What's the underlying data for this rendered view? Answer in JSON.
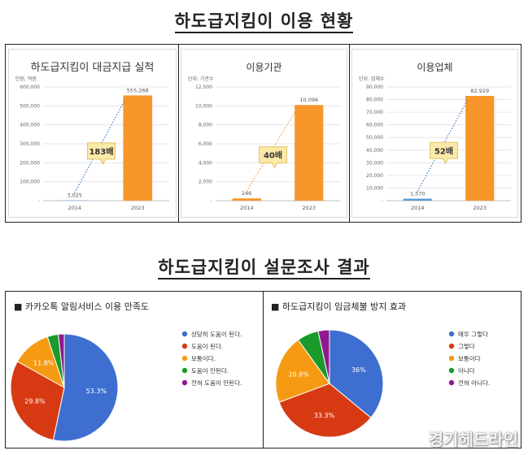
{
  "section1_title": "하도급지킴이 이용 현황",
  "section2_title": "하도급지킴이 설문조사 결과",
  "watermark": "경기헤드라인",
  "chart_data": [
    {
      "type": "bar",
      "title": "하도급지킴이 대금지급 실적",
      "unit_label": "만원, 억원",
      "categories": [
        "2014",
        "2023"
      ],
      "values": [
        3025,
        555268
      ],
      "value_labels": [
        "3,025",
        "555,268"
      ],
      "ylim": [
        0,
        600000
      ],
      "yticks": [
        "-",
        "100,000",
        "200,000",
        "300,000",
        "400,000",
        "500,000",
        "600,000"
      ],
      "bar_colors": [
        "#a9c4e6",
        "#f7962b"
      ],
      "trend_color": "#4a86c8",
      "callout": "183배",
      "grid": true
    },
    {
      "type": "bar",
      "title": "이용기관",
      "unit_label": "단위: 기관수",
      "categories": [
        "2014",
        "2023"
      ],
      "values": [
        246,
        10096
      ],
      "value_labels": [
        "246",
        "10,096"
      ],
      "ylim": [
        0,
        12000
      ],
      "yticks": [
        "-",
        "2,000",
        "4,000",
        "6,000",
        "8,000",
        "10,000",
        "12,000"
      ],
      "bar_colors": [
        "#f7962b",
        "#f7962b"
      ],
      "trend_color": "#f0a050",
      "callout": "40배",
      "grid": true
    },
    {
      "type": "bar",
      "title": "이용업체",
      "unit_label": "단위: 업체수",
      "categories": [
        "2014",
        "2023"
      ],
      "values": [
        1570,
        82929
      ],
      "value_labels": [
        "1,570",
        "82,929"
      ],
      "ylim": [
        0,
        90000
      ],
      "yticks": [
        "-",
        "10,000",
        "20,000",
        "30,000",
        "40,000",
        "50,000",
        "60,000",
        "70,000",
        "80,000",
        "90,000"
      ],
      "bar_colors": [
        "#5b9bd5",
        "#f7962b"
      ],
      "trend_color": "#4a86c8",
      "callout": "52배",
      "grid": true
    },
    {
      "type": "pie",
      "title": "■  카카오톡 알림서비스 이용 만족도",
      "legend_position": "right",
      "slices": [
        {
          "label": "상당히 도움이 된다.",
          "value": 53.3,
          "text": "53.3%",
          "color": "#3e6fd0"
        },
        {
          "label": "도움이 된다.",
          "value": 29.8,
          "text": "29.8%",
          "color": "#d73a12"
        },
        {
          "label": "보통이다.",
          "value": 11.8,
          "text": "11.8%",
          "color": "#f59a12"
        },
        {
          "label": "도움이 안된다.",
          "value": 3.3,
          "text": "",
          "color": "#1a9a2a"
        },
        {
          "label": "전혀 도움이 안된다.",
          "value": 1.8,
          "text": "",
          "color": "#8e1a8e"
        }
      ]
    },
    {
      "type": "pie",
      "title": "■  하도급지킴이 임금체불 방지 효과",
      "legend_position": "right",
      "slices": [
        {
          "label": "매우 그렇다",
          "value": 36,
          "text": "36%",
          "color": "#3e6fd0"
        },
        {
          "label": "그렇다",
          "value": 33.3,
          "text": "33.3%",
          "color": "#d73a12"
        },
        {
          "label": "보통이다",
          "value": 20.8,
          "text": "20.8%",
          "color": "#f59a12"
        },
        {
          "label": "아니다",
          "value": 6.5,
          "text": "",
          "color": "#1a9a2a"
        },
        {
          "label": "전혀 아니다.",
          "value": 3.4,
          "text": "",
          "color": "#8e1a8e"
        }
      ]
    }
  ]
}
